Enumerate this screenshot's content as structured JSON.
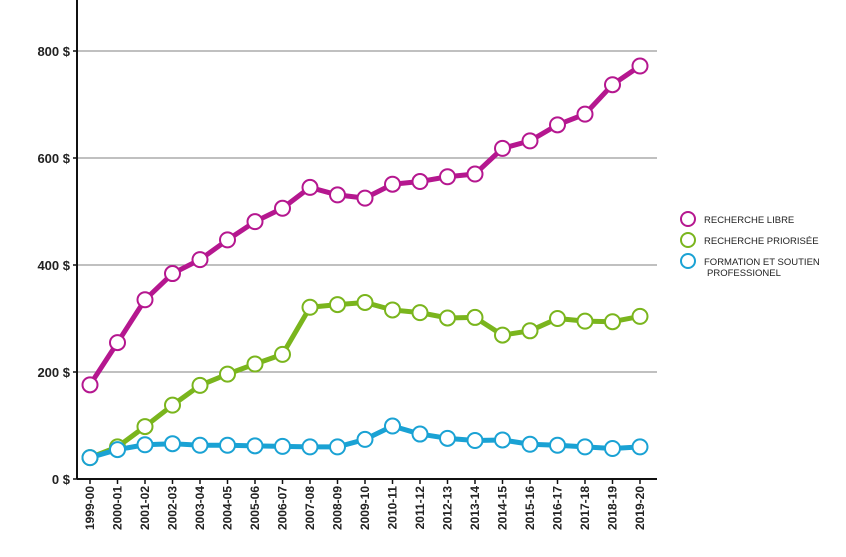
{
  "chart_data": {
    "type": "line",
    "title": "",
    "xlabel": "",
    "ylabel": "",
    "ylim": [
      0,
      800
    ],
    "y_ticks": [
      "0 $",
      "200 $",
      "400 $",
      "600 $",
      "800 $"
    ],
    "y_tick_values": [
      0,
      200,
      400,
      600,
      800
    ],
    "grid": true,
    "legend_position": "right",
    "categories": [
      "1999-00",
      "2000-01",
      "2001-02",
      "2002-03",
      "2003-04",
      "2004-05",
      "2005-06",
      "2006-07",
      "2007-08",
      "2008-09",
      "2009-10",
      "2010-11",
      "2011-12",
      "2012-13",
      "2013-14",
      "2014-15",
      "2015-16",
      "2016-17",
      "2017-18",
      "2018-19",
      "2019-20"
    ],
    "series": [
      {
        "name": "RECHERCHE LIBRE",
        "color": "#b5178f",
        "values": [
          176,
          255,
          335,
          384,
          410,
          447,
          481,
          506,
          545,
          531,
          525,
          551,
          556,
          565,
          570,
          618,
          632,
          662,
          682,
          737,
          772
        ]
      },
      {
        "name": "RECHERCHE PRIORISÉE",
        "color": "#7ab51d",
        "values": [
          40,
          60,
          98,
          138,
          175,
          196,
          215,
          233,
          321,
          326,
          330,
          316,
          311,
          301,
          302,
          269,
          277,
          300,
          295,
          294,
          304
        ]
      },
      {
        "name": "FORMATION ET SOUTIEN PROFESSIONEL",
        "name_lines": [
          "FORMATION ET SOUTIEN",
          "PROFESSIONEL"
        ],
        "color": "#1aa2d4",
        "values": [
          40,
          55,
          64,
          66,
          63,
          63,
          62,
          61,
          60,
          60,
          74,
          99,
          84,
          76,
          72,
          73,
          65,
          63,
          60,
          57,
          60
        ]
      }
    ]
  }
}
